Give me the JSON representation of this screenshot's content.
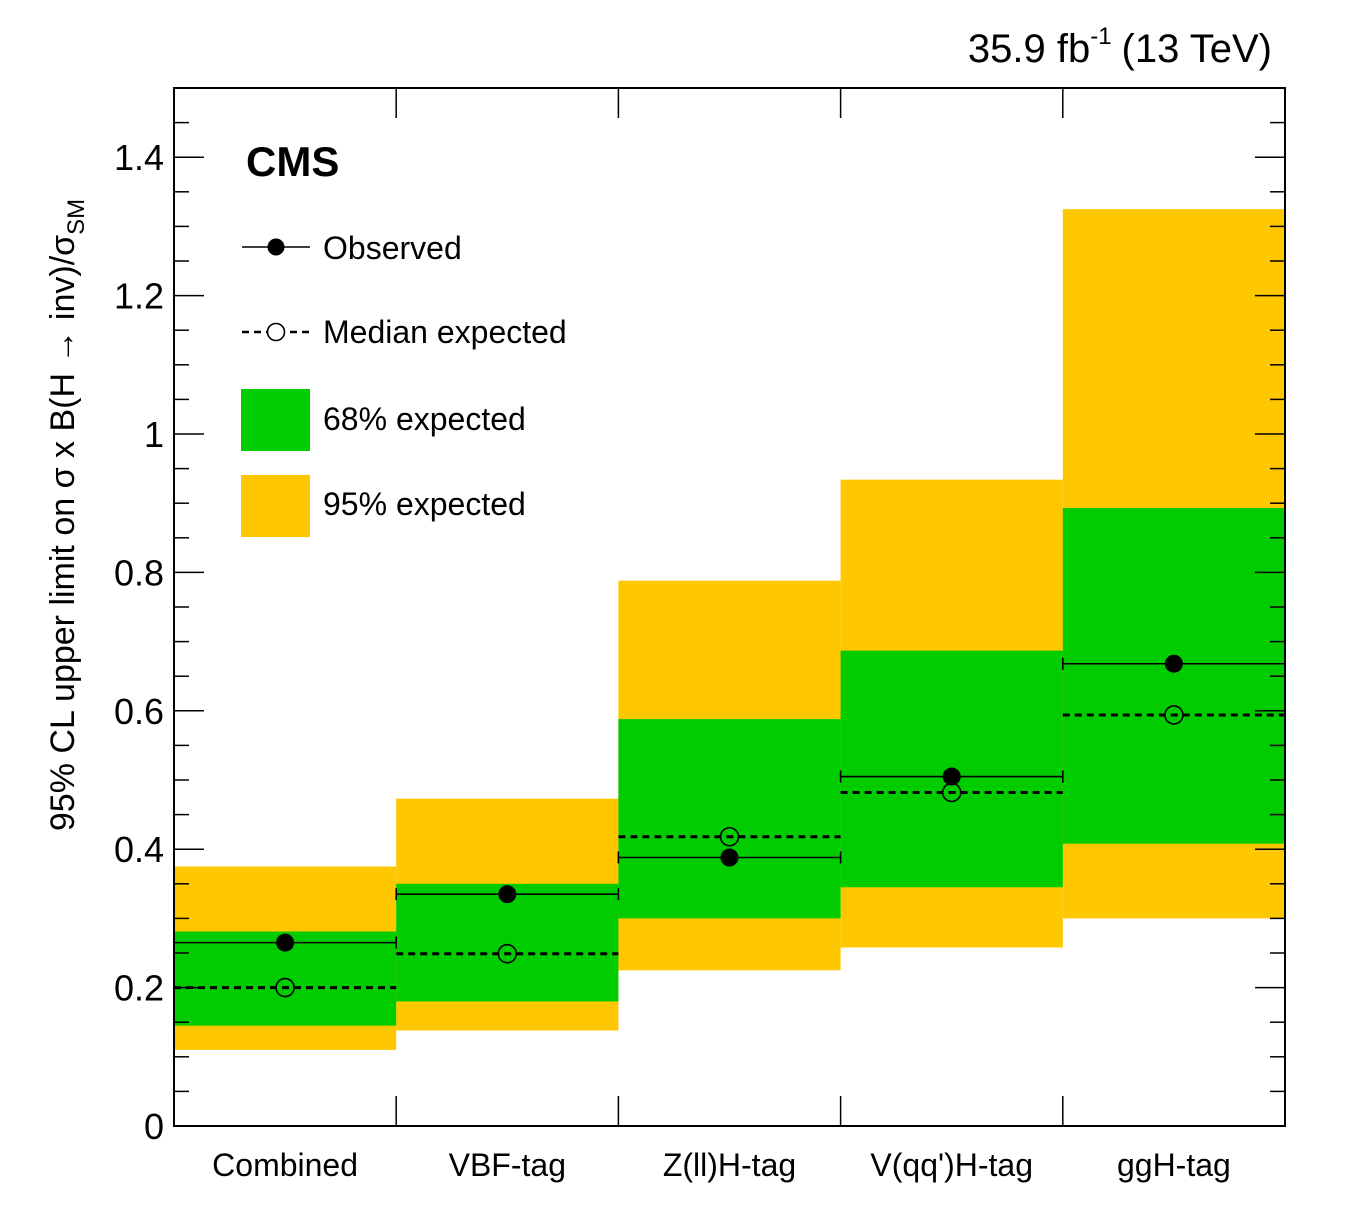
{
  "chart_data": {
    "type": "bar",
    "experiment_label": "CMS",
    "lumi_text": {
      "value": "35.9 fb",
      "exponent": "-1",
      "energy": "(13 TeV)"
    },
    "ylabel": {
      "main": "95% CL upper limit on σ x B(H → inv)/σ",
      "subscript": "SM"
    },
    "ylim": [
      0,
      1.5
    ],
    "yticks": [
      0,
      0.2,
      0.4,
      0.6,
      0.8,
      1,
      1.2,
      1.4
    ],
    "ytick_labels": [
      "0",
      "0.2",
      "0.4",
      "0.6",
      "0.8",
      "1",
      "1.2",
      "1.4"
    ],
    "categories": [
      "Combined",
      "VBF-tag",
      "Z(ll)H-tag",
      "V(qq')H-tag",
      "ggH-tag"
    ],
    "observed": [
      0.265,
      0.335,
      0.388,
      0.505,
      0.668
    ],
    "expected_median": [
      0.2,
      0.249,
      0.418,
      0.482,
      0.594
    ],
    "band_68": [
      [
        0.145,
        0.281
      ],
      [
        0.18,
        0.35
      ],
      [
        0.3,
        0.588
      ],
      [
        0.345,
        0.687
      ],
      [
        0.408,
        0.893
      ]
    ],
    "band_95": [
      [
        0.11,
        0.375
      ],
      [
        0.138,
        0.473
      ],
      [
        0.225,
        0.788
      ],
      [
        0.258,
        0.934
      ],
      [
        0.3,
        1.325
      ]
    ],
    "legend": {
      "placement": "top-left",
      "entries": [
        {
          "label": "Observed",
          "style": "filled-marker-line"
        },
        {
          "label": "Median expected",
          "style": "open-marker-dashed"
        },
        {
          "label": "68% expected",
          "style": "green-box"
        },
        {
          "label": "95% expected",
          "style": "yellow-box"
        }
      ]
    },
    "colors": {
      "band_68": "#00cc00",
      "band_95": "#ffc700",
      "observed": "#000000",
      "expected": "#000000"
    },
    "grid": false
  }
}
